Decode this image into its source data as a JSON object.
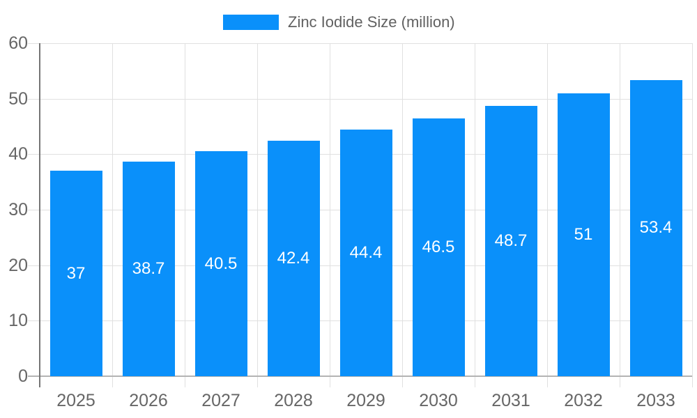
{
  "legend": {
    "label": "Zinc Iodide Size (million)"
  },
  "chart_data": {
    "type": "bar",
    "title": "",
    "categories": [
      "2025",
      "2026",
      "2027",
      "2028",
      "2029",
      "2030",
      "2031",
      "2032",
      "2033"
    ],
    "series": [
      {
        "name": "Zinc Iodide Size (million)",
        "values": [
          37,
          38.7,
          40.5,
          42.4,
          44.4,
          46.5,
          48.7,
          51,
          53.4
        ]
      }
    ],
    "value_labels": [
      "37",
      "38.7",
      "40.5",
      "42.4",
      "44.4",
      "46.5",
      "48.7",
      "51",
      "53.4"
    ],
    "xlabel": "",
    "ylabel": "",
    "ylim": [
      0,
      60
    ],
    "ytick_step": 10,
    "yticks": [
      0,
      10,
      20,
      30,
      40,
      50,
      60
    ],
    "grid": true,
    "legend_position": "top-center",
    "value_label_position": "inside-center",
    "colors": {
      "bar": "#0a90fa",
      "value_label": "#ffffff",
      "axis_text": "#666666",
      "legend_text": "#616161",
      "gridline": "#e0e0e0",
      "y_axis_line": "#757575",
      "x_axis_line": "#b3b3b3",
      "background": "#ffffff"
    }
  }
}
